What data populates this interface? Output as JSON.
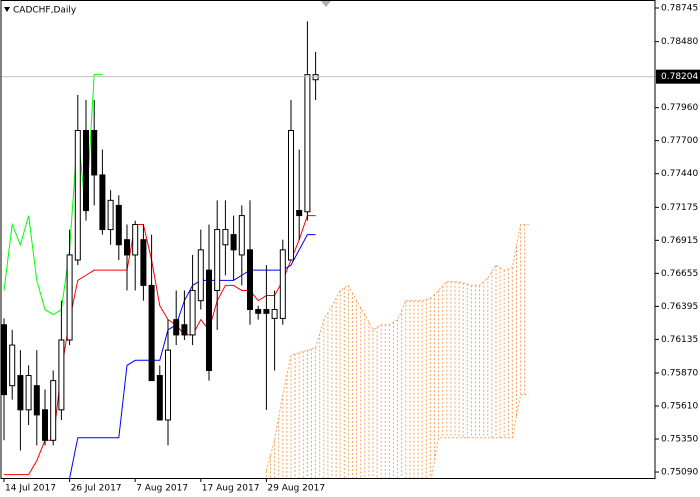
{
  "chart_data": {
    "type": "candlestick",
    "title": "CADCHF,Daily",
    "categories": [
      "14 Jul 2017",
      null,
      null,
      null,
      null,
      null,
      null,
      null,
      "26 Jul 2017",
      null,
      null,
      null,
      null,
      null,
      null,
      null,
      "7 Aug 2017",
      null,
      null,
      null,
      null,
      null,
      null,
      null,
      "17 Aug 2017",
      null,
      null,
      null,
      null,
      null,
      null,
      null,
      "29 Aug 2017",
      null,
      null,
      null,
      null,
      null,
      null,
      null,
      null,
      null,
      null,
      null,
      null,
      null,
      null,
      null,
      null,
      null,
      null,
      null,
      null,
      null,
      null,
      null,
      null,
      null,
      null,
      null,
      null,
      null,
      null,
      null,
      null
    ],
    "open": [
      0.7625,
      0.7577,
      0.7585,
      0.7558,
      0.7577,
      0.7558,
      0.7534,
      0.7558,
      0.7613,
      0.7676,
      0.7778,
      0.7778,
      0.7743,
      0.77,
      0.7719,
      0.7692,
      0.768,
      0.7692,
      0.7656,
      0.7585,
      0.755,
      0.7629,
      0.7625,
      0.7617,
      0.7644,
      0.7668,
      0.7652,
      0.7688,
      0.7696,
      0.768,
      0.7684,
      0.7637,
      0.7637,
      0.763,
      0.763,
      0.7676,
      0.7715,
      0.7714,
      0.7818,
      null,
      null,
      null,
      null,
      null,
      null,
      null,
      null,
      null,
      null,
      null,
      null,
      null,
      null,
      null,
      null,
      null,
      null,
      null,
      null,
      null,
      null,
      null,
      null,
      null,
      null
    ],
    "high": [
      0.763,
      0.7621,
      0.7605,
      0.7593,
      0.7605,
      0.7574,
      0.7589,
      0.7644,
      0.77,
      0.7806,
      0.7802,
      0.7802,
      0.7763,
      0.7731,
      0.7727,
      0.7704,
      0.7707,
      0.7704,
      0.7696,
      0.7593,
      0.7629,
      0.7652,
      0.7652,
      0.768,
      0.77,
      0.7704,
      0.7723,
      0.7723,
      0.7711,
      0.7719,
      0.7723,
      0.764,
      0.7672,
      0.7652,
      0.7692,
      0.7802,
      0.7763,
      0.7864,
      0.784,
      null,
      null,
      null,
      null,
      null,
      null,
      null,
      null,
      null,
      null,
      null,
      null,
      null,
      null,
      null,
      null,
      null,
      null,
      null,
      null,
      null,
      null,
      null,
      null,
      null,
      null
    ],
    "low": [
      0.7534,
      0.7566,
      0.7526,
      0.7546,
      0.753,
      0.753,
      0.753,
      0.755,
      0.7609,
      0.7672,
      0.7707,
      0.7719,
      0.7696,
      0.7688,
      0.7676,
      0.7652,
      0.7652,
      0.7644,
      0.7581,
      0.755,
      0.753,
      0.7609,
      0.7613,
      0.7609,
      0.7637,
      0.7581,
      0.7621,
      0.7664,
      0.766,
      0.7656,
      0.7625,
      0.7629,
      0.7558,
      0.7589,
      0.7625,
      0.7676,
      0.7692,
      0.7707,
      0.7802,
      null,
      null,
      null,
      null,
      null,
      null,
      null,
      null,
      null,
      null,
      null,
      null,
      null,
      null,
      null,
      null,
      null,
      null,
      null,
      null,
      null,
      null,
      null,
      null,
      null,
      null
    ],
    "close": [
      0.757,
      0.7609,
      0.7558,
      0.7585,
      0.7554,
      0.7534,
      0.7581,
      0.7613,
      0.768,
      0.7778,
      0.7715,
      0.7743,
      0.77,
      0.7723,
      0.7688,
      0.768,
      0.7704,
      0.7656,
      0.7581,
      0.755,
      0.7605,
      0.7617,
      0.7617,
      0.7652,
      0.7684,
      0.7589,
      0.77,
      0.77,
      0.7684,
      0.7711,
      0.7637,
      0.7634,
      0.7634,
      0.7637,
      0.7684,
      0.7778,
      0.7711,
      0.7822,
      0.7822,
      null,
      null,
      null,
      null,
      null,
      null,
      null,
      null,
      null,
      null,
      null,
      null,
      null,
      null,
      null,
      null,
      null,
      null,
      null,
      null,
      null,
      null,
      null,
      null,
      null,
      null
    ],
    "up_color": "#ffffff",
    "down_color": "#000000",
    "series": [
      {
        "color": "#ff0000",
        "values": [
          0.7507,
          0.7507,
          0.7507,
          0.7507,
          0.7518,
          0.7534,
          0.7534,
          0.7589,
          0.7629,
          0.766,
          0.7664,
          0.7668,
          0.7668,
          0.7668,
          0.7668,
          0.7668,
          0.7704,
          0.7704,
          0.7676,
          0.764,
          0.7629,
          0.7625,
          0.7617,
          0.7617,
          0.7629,
          0.7621,
          0.7644,
          0.7656,
          0.7656,
          0.7652,
          0.7652,
          0.7644,
          0.7648,
          0.7648,
          0.766,
          0.7676,
          0.7692,
          0.7711,
          0.7711,
          null,
          null,
          null,
          null,
          null,
          null,
          null,
          null,
          null,
          null,
          null,
          null,
          null,
          null,
          null,
          null,
          null,
          null,
          null,
          null,
          null,
          null,
          null,
          null,
          null,
          null
        ]
      },
      {
        "color": "#0000ff",
        "values": [
          null,
          null,
          null,
          null,
          null,
          null,
          null,
          null,
          0.7504,
          0.7536,
          0.7536,
          0.7536,
          0.7536,
          0.7536,
          0.7536,
          0.7593,
          0.7597,
          0.7597,
          0.7597,
          0.7597,
          0.7621,
          0.7625,
          0.7644,
          0.7656,
          0.766,
          0.766,
          0.766,
          0.766,
          0.766,
          0.7664,
          0.7668,
          0.7668,
          0.7668,
          0.7668,
          0.7668,
          0.7672,
          0.7684,
          0.7696,
          0.7696,
          null,
          null,
          null,
          null,
          null,
          null,
          null,
          null,
          null,
          null,
          null,
          null,
          null,
          null,
          null,
          null,
          null,
          null,
          null,
          null,
          null,
          null,
          null,
          null,
          null,
          null
        ]
      },
      {
        "color": "#00ff00",
        "values": [
          0.7652,
          0.7704,
          0.7688,
          0.7711,
          0.766,
          0.7637,
          0.7633,
          0.7637,
          0.7684,
          0.7778,
          0.7711,
          0.7822,
          0.7822,
          null,
          null,
          null,
          null,
          null,
          null,
          null,
          null,
          null,
          null,
          null,
          null,
          null,
          null,
          null,
          null,
          null,
          null,
          null,
          null,
          null,
          null,
          null,
          null,
          null,
          null,
          null,
          null,
          null,
          null,
          null,
          null,
          null,
          null,
          null,
          null,
          null,
          null,
          null,
          null,
          null,
          null,
          null,
          null,
          null,
          null,
          null,
          null,
          null,
          null,
          null,
          null
        ]
      },
      {
        "color": "#f4a460",
        "cloud": true,
        "values": [
          null,
          null,
          null,
          null,
          null,
          null,
          null,
          null,
          null,
          null,
          null,
          null,
          null,
          null,
          null,
          null,
          null,
          null,
          null,
          null,
          null,
          null,
          null,
          null,
          null,
          null,
          null,
          null,
          null,
          null,
          null,
          null,
          0.751,
          0.7534,
          0.757,
          0.7601,
          0.7603,
          0.7605,
          0.7607,
          0.7629,
          0.764,
          0.7652,
          0.7656,
          0.7644,
          0.7633,
          0.7621,
          0.7625,
          0.7625,
          0.7629,
          0.7644,
          0.7644,
          0.7644,
          0.7646,
          0.7652,
          0.7659,
          0.7659,
          0.7658,
          0.7656,
          0.7656,
          0.7662,
          0.7672,
          0.7668,
          0.767,
          0.7704,
          0.7704
        ]
      },
      {
        "color": "#f4a460",
        "cloud": true,
        "values": [
          null,
          null,
          null,
          null,
          null,
          null,
          null,
          null,
          null,
          null,
          null,
          null,
          null,
          null,
          null,
          null,
          null,
          null,
          null,
          null,
          null,
          null,
          null,
          null,
          null,
          null,
          null,
          null,
          null,
          null,
          null,
          null,
          0.75,
          0.75,
          0.75,
          0.75,
          0.75,
          0.75,
          0.75,
          0.75,
          0.75,
          0.75,
          0.75,
          0.75,
          0.75,
          0.75,
          0.75,
          0.75,
          0.75,
          0.75,
          0.75,
          0.75,
          0.75,
          0.7536,
          0.7536,
          0.7536,
          0.7536,
          0.7536,
          0.7536,
          0.7536,
          0.7536,
          0.7536,
          0.7536,
          0.757,
          0.757
        ]
      }
    ],
    "last_price": 0.78204,
    "ylim": [
      0.75043,
      0.78808
    ],
    "yticks": [
      0.78745,
      {
        "value": 0.7848,
        "label": "0.78480"
      },
      {
        "value": 0.7796,
        "label": "0.77960"
      },
      {
        "value": 0.777,
        "label": "0.77700"
      },
      {
        "value": 0.7744,
        "label": "0.77440"
      },
      0.77175,
      0.76915,
      0.76655,
      0.76395,
      0.76135,
      {
        "value": 0.7587,
        "label": "0.75870"
      },
      {
        "value": 0.7561,
        "label": "0.75610"
      },
      {
        "value": 0.7535,
        "label": "0.75350"
      },
      {
        "value": 0.7509,
        "label": "0.75090"
      }
    ],
    "grid": false
  }
}
